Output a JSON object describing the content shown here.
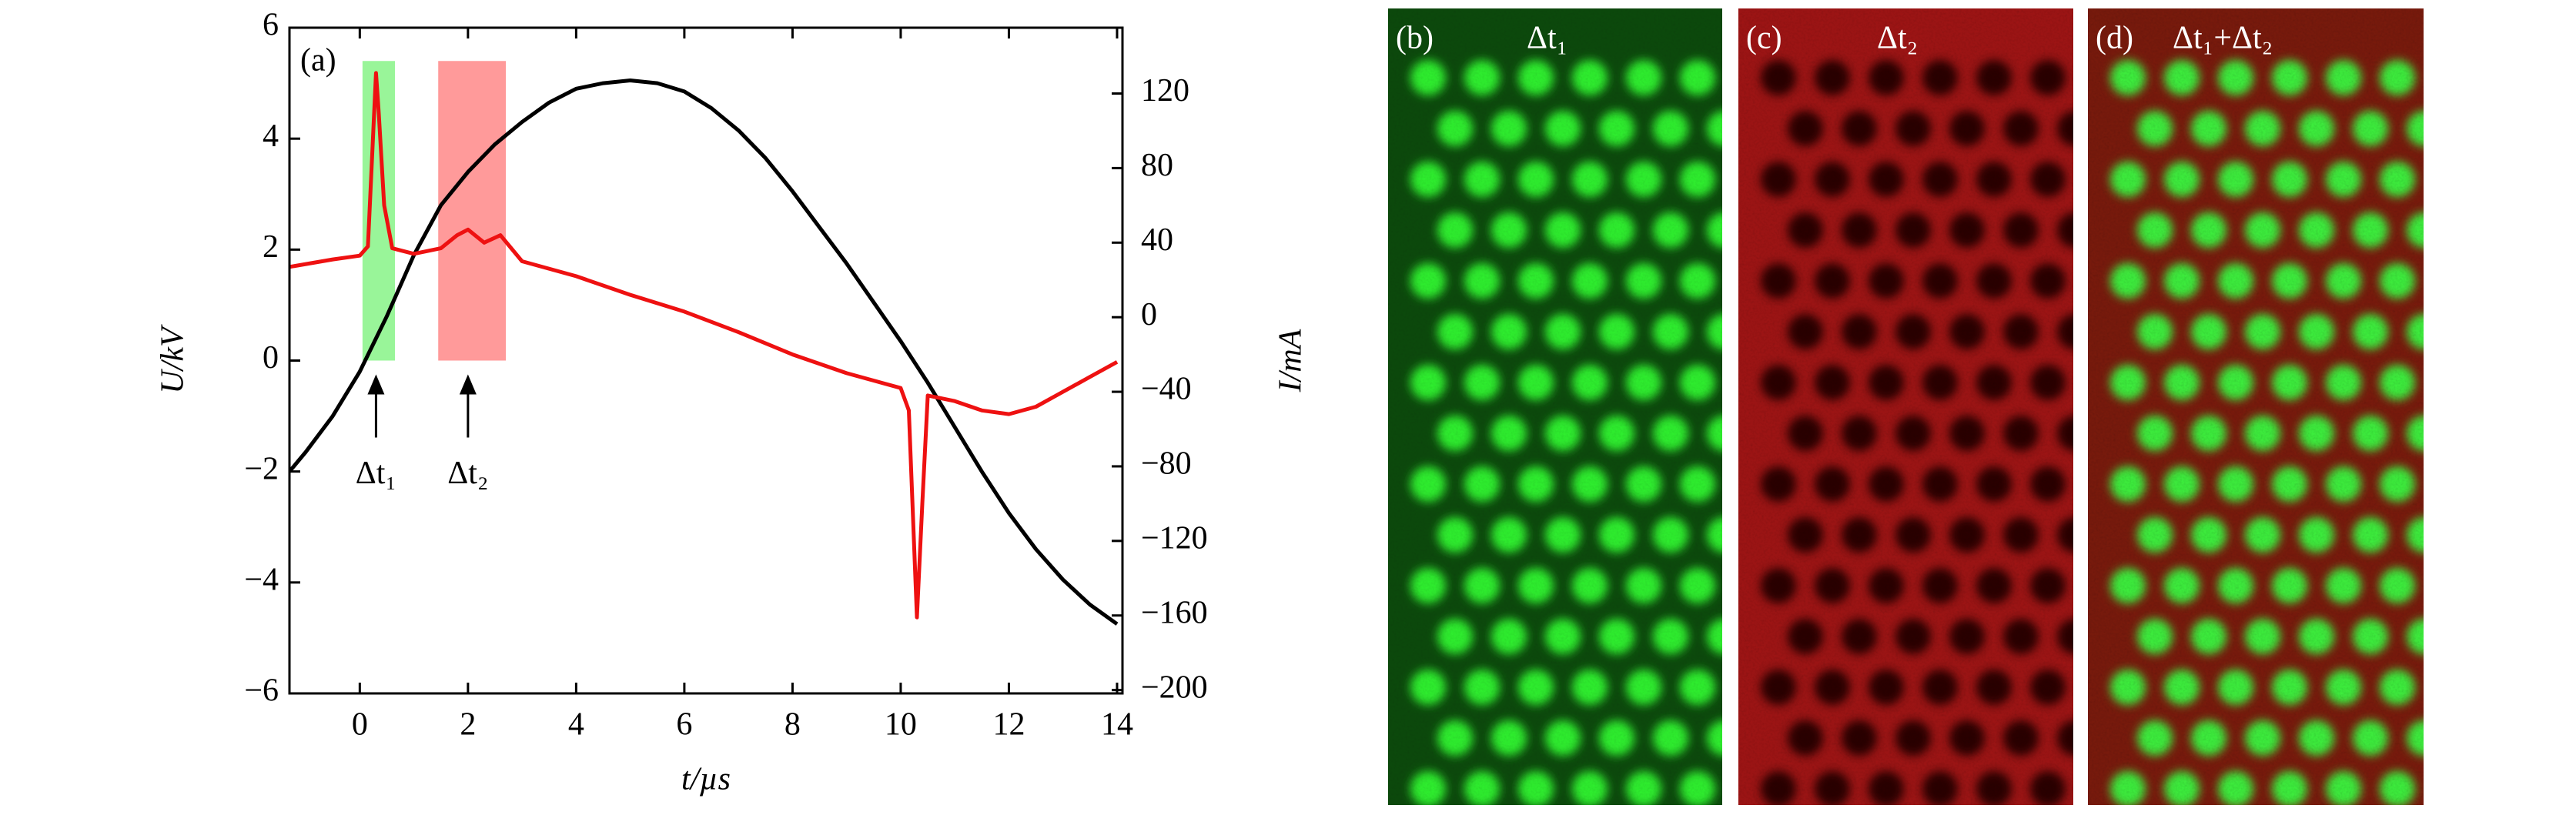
{
  "chart_data": {
    "type": "line",
    "panel_label": "(a)",
    "x_label": "t/µs",
    "y_label": "U/kV",
    "y2_label": "I/mA",
    "xlim": [
      -1.3,
      14.1
    ],
    "ylim": [
      -6,
      6
    ],
    "y2lim": [
      -201.8,
      155.3
    ],
    "xticks": [
      0,
      2,
      4,
      6,
      8,
      10,
      12,
      14
    ],
    "yticks": [
      {
        "value": -6,
        "label": "−6"
      },
      {
        "value": -4,
        "label": "−4"
      },
      {
        "value": -2,
        "label": "−2"
      },
      0,
      2,
      4,
      6
    ],
    "y2ticks": [
      {
        "value": -200,
        "label": "−200"
      },
      {
        "value": -160,
        "label": "−160"
      },
      {
        "value": -120,
        "label": "−120"
      },
      {
        "value": -80,
        "label": "−80"
      },
      {
        "value": -40,
        "label": "−40"
      },
      0,
      40,
      80,
      120
    ],
    "series": [
      {
        "name": "U",
        "color": "#000000",
        "x": [
          -1.3,
          -1,
          -0.5,
          0,
          0.5,
          1,
          1.5,
          2,
          2.5,
          3,
          3.5,
          4,
          4.5,
          5,
          5.5,
          6,
          6.5,
          7,
          7.5,
          8,
          8.5,
          9,
          9.5,
          10,
          10.5,
          11,
          11.5,
          12,
          12.5,
          13,
          13.5,
          14
        ],
        "values": [
          -2.0,
          -1.65,
          -1.0,
          -0.2,
          0.8,
          1.9,
          2.8,
          3.4,
          3.9,
          4.3,
          4.65,
          4.9,
          5.0,
          5.05,
          5.0,
          4.85,
          4.55,
          4.15,
          3.65,
          3.05,
          2.4,
          1.75,
          1.05,
          0.35,
          -0.4,
          -1.2,
          -2.0,
          -2.75,
          -3.4,
          -3.95,
          -4.4,
          -4.75
        ]
      },
      {
        "name": "I",
        "color": "#ee1111",
        "axis": "y2",
        "x": [
          -1.3,
          -0.5,
          0,
          0.15,
          0.25,
          0.3,
          0.35,
          0.45,
          0.6,
          1,
          1.5,
          1.8,
          2,
          2.3,
          2.6,
          3,
          4,
          5,
          6,
          7,
          8,
          9,
          10,
          10.15,
          10.3,
          10.4,
          10.5,
          11,
          11.5,
          12,
          12.5,
          13,
          13.5,
          14
        ],
        "values": [
          27,
          31,
          33,
          38,
          100,
          131,
          110,
          60,
          37,
          34,
          37,
          44,
          47,
          40,
          44,
          30,
          22,
          12,
          3,
          -8,
          -20,
          -30,
          -38,
          -50,
          -161,
          -100,
          -42,
          -45,
          -50,
          -52,
          -48,
          -40,
          -32,
          -24
        ]
      }
    ],
    "spans": [
      {
        "x": [
          0.05,
          0.65
        ],
        "y": [
          0,
          5.4
        ],
        "color": "#99f599"
      },
      {
        "x": [
          1.45,
          2.7
        ],
        "y": [
          0,
          5.4
        ],
        "color": "#ff9a9a"
      }
    ],
    "annotations": [
      {
        "text": "Δt₁",
        "x": 0.3,
        "y": -0.25
      },
      {
        "text": "Δt₂",
        "x": 2.0,
        "y": -0.25
      }
    ]
  },
  "images": [
    {
      "label": "(b)",
      "title": "Δt₁"
    },
    {
      "label": "(c)",
      "title": "Δt₂"
    },
    {
      "label": "(d)",
      "title": "Δt₁+Δt₂"
    }
  ]
}
